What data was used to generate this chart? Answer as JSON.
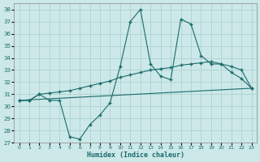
{
  "title": "",
  "xlabel": "Humidex (Indice chaleur)",
  "ylabel": "",
  "xlim": [
    -0.5,
    23.5
  ],
  "ylim": [
    27,
    38.5
  ],
  "yticks": [
    27,
    28,
    29,
    30,
    31,
    32,
    33,
    34,
    35,
    36,
    37,
    38
  ],
  "xticks": [
    0,
    1,
    2,
    3,
    4,
    5,
    6,
    7,
    8,
    9,
    10,
    11,
    12,
    13,
    14,
    15,
    16,
    17,
    18,
    19,
    20,
    21,
    22,
    23
  ],
  "background_color": "#cce8e8",
  "grid_color": "#aacccc",
  "line_color": "#1a6b6b",
  "series1": {
    "x": [
      0,
      1,
      2,
      3,
      4,
      5,
      6,
      7,
      8,
      9,
      10,
      11,
      12,
      13,
      14,
      15,
      16,
      17,
      18,
      19,
      20,
      21,
      22,
      23
    ],
    "y": [
      30.5,
      30.5,
      31.0,
      30.5,
      30.5,
      27.5,
      27.3,
      28.5,
      29.3,
      30.3,
      33.3,
      37.0,
      38.0,
      33.5,
      32.5,
      32.2,
      37.2,
      36.8,
      34.2,
      33.5,
      33.5,
      32.8,
      32.3,
      31.5
    ]
  },
  "series2": {
    "x": [
      0,
      23
    ],
    "y": [
      30.5,
      31.5
    ]
  },
  "series3": {
    "x": [
      0,
      1,
      2,
      3,
      4,
      5,
      6,
      7,
      8,
      9,
      10,
      11,
      12,
      13,
      14,
      15,
      16,
      17,
      18,
      19,
      20,
      21,
      22,
      23
    ],
    "y": [
      30.5,
      30.5,
      31.0,
      31.1,
      31.2,
      31.3,
      31.5,
      31.7,
      31.9,
      32.1,
      32.4,
      32.6,
      32.8,
      33.0,
      33.1,
      33.2,
      33.4,
      33.5,
      33.6,
      33.7,
      33.5,
      33.3,
      33.0,
      31.5
    ]
  }
}
